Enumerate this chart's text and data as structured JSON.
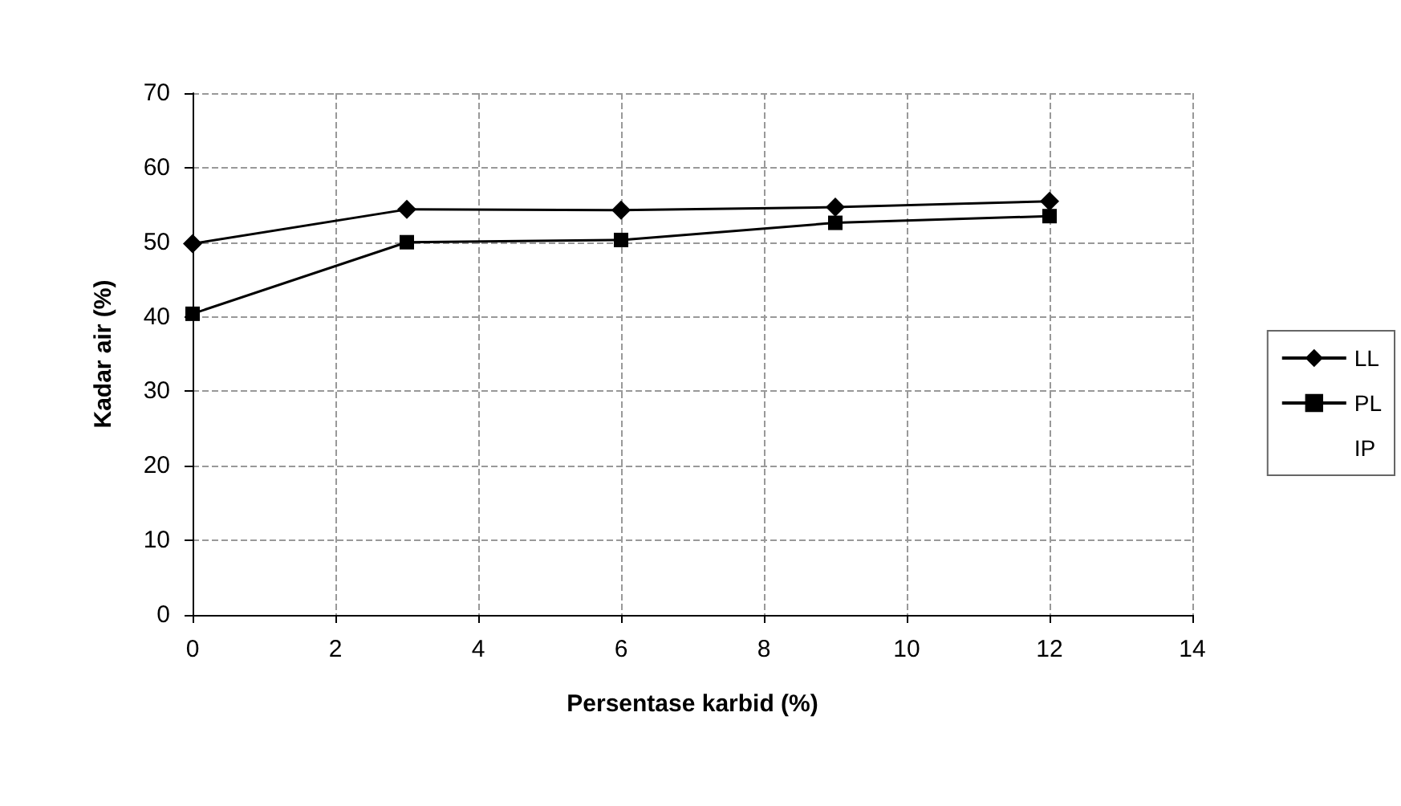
{
  "chart_data": {
    "type": "line",
    "xlabel": "Persentase karbid (%)",
    "ylabel": "Kadar air (%)",
    "x": [
      0,
      3,
      6,
      9,
      12
    ],
    "xlim": [
      0,
      14
    ],
    "xticks": [
      0,
      2,
      4,
      6,
      8,
      10,
      12,
      14
    ],
    "ylim": [
      0,
      70
    ],
    "yticks": [
      0,
      10,
      20,
      30,
      40,
      50,
      60,
      70
    ],
    "grid": true,
    "legend": "right",
    "line_style": "solid",
    "series": [
      {
        "name": "LL",
        "color": "#000000",
        "marker": "diamond",
        "values": [
          49.8,
          54.4,
          54.3,
          54.7,
          55.5
        ]
      },
      {
        "name": "PL",
        "color": "#000000",
        "marker": "square",
        "values": [
          40.4,
          50,
          50.3,
          52.6,
          53.5
        ]
      },
      {
        "name": "IP",
        "marker": "none",
        "values": [
          null,
          null,
          null,
          null,
          null
        ]
      }
    ]
  }
}
